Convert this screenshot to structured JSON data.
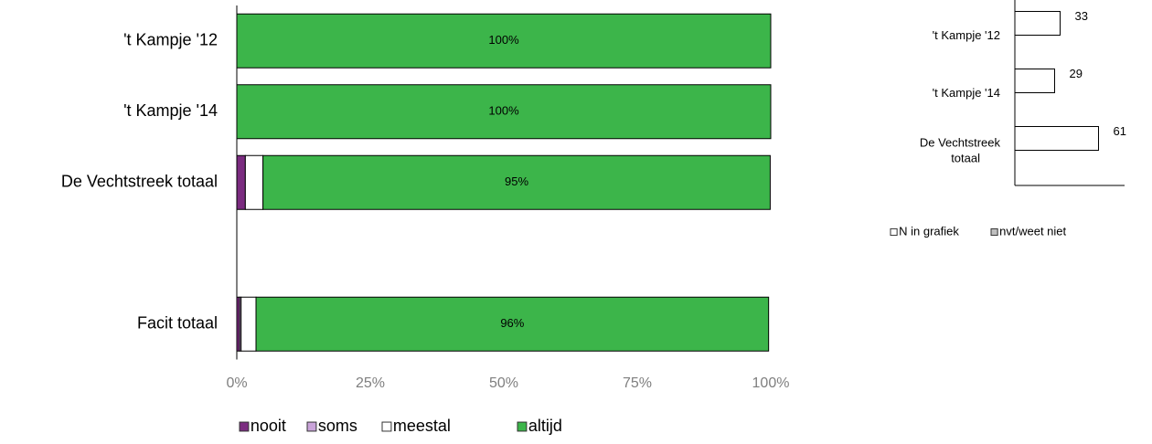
{
  "chart_data": [
    {
      "type": "bar",
      "orientation": "horizontal",
      "stacked": true,
      "categories": [
        "'t Kampje '12",
        "'t Kampje '14",
        "De Vechtstreek totaal",
        null,
        "Facit totaal"
      ],
      "series": [
        {
          "name": "nooit",
          "color": "#7b2c80",
          "values": [
            0,
            0,
            1.6,
            null,
            0.5
          ]
        },
        {
          "name": "soms",
          "color": "#c9a3d9",
          "values": [
            0,
            0,
            0,
            null,
            0.3
          ]
        },
        {
          "name": "meestal",
          "color": "#ffffff",
          "values": [
            0,
            0,
            3.3,
            null,
            2.8
          ]
        },
        {
          "name": "altijd",
          "color": "#3cb54a",
          "values": [
            100,
            100,
            95,
            null,
            96
          ],
          "value_labels": [
            "100%",
            "100%",
            "95%",
            null,
            "96%"
          ]
        }
      ],
      "xlim": [
        0,
        100
      ],
      "xticks": [
        {
          "value": 0,
          "label": "0%"
        },
        {
          "value": 25,
          "label": "25%"
        },
        {
          "value": 50,
          "label": "50%"
        },
        {
          "value": 75,
          "label": "75%"
        },
        {
          "value": 100,
          "label": "100%"
        }
      ],
      "legend": "bottom"
    },
    {
      "type": "bar",
      "orientation": "horizontal",
      "stacked": false,
      "categories": [
        "'t Kampje '12",
        "'t Kampje '14",
        "De Vechtstreek totaal"
      ],
      "series": [
        {
          "name": "N in grafiek",
          "color": "#ffffff",
          "values": [
            33,
            29,
            61
          ]
        },
        {
          "name": "nvt/weet niet",
          "color": "#bfbfbf",
          "values": [
            0,
            0,
            0
          ]
        }
      ],
      "xlim": [
        0,
        80
      ],
      "legend": "bottom"
    }
  ]
}
